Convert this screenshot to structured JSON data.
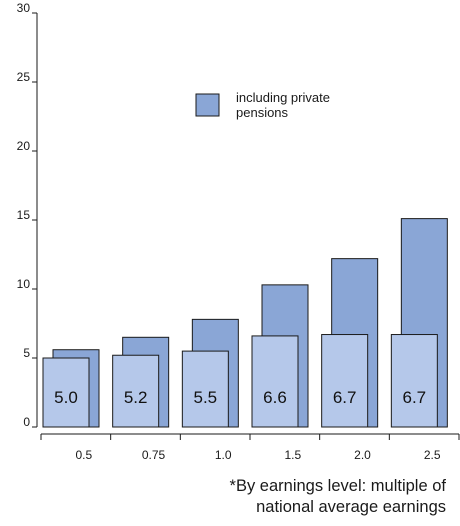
{
  "chart_data": {
    "type": "bar",
    "categories": [
      "0.5",
      "0.75",
      "1.0",
      "1.5",
      "2.0",
      "2.5"
    ],
    "series": [
      {
        "name": "including private pensions",
        "values": [
          5.6,
          6.5,
          7.8,
          10.3,
          12.2,
          15.1
        ],
        "color": "#8aa6d6"
      },
      {
        "values": [
          5.0,
          5.2,
          5.5,
          6.6,
          6.7,
          6.7
        ],
        "color": "#b5c8ea"
      }
    ],
    "data_labels": [
      "5.0",
      "5.2",
      "5.5",
      "6.6",
      "6.7",
      "6.7"
    ],
    "yticks": [
      "0",
      "5",
      "10",
      "15",
      "20",
      "25",
      "30"
    ],
    "ylim": [
      0,
      30
    ],
    "grid": false,
    "legend": {
      "label_line1": "including private",
      "label_line2": "pensions",
      "placement": "upper-right"
    },
    "footnote": {
      "line1": "*By earnings level: multiple of",
      "line2": "national average earnings"
    }
  }
}
